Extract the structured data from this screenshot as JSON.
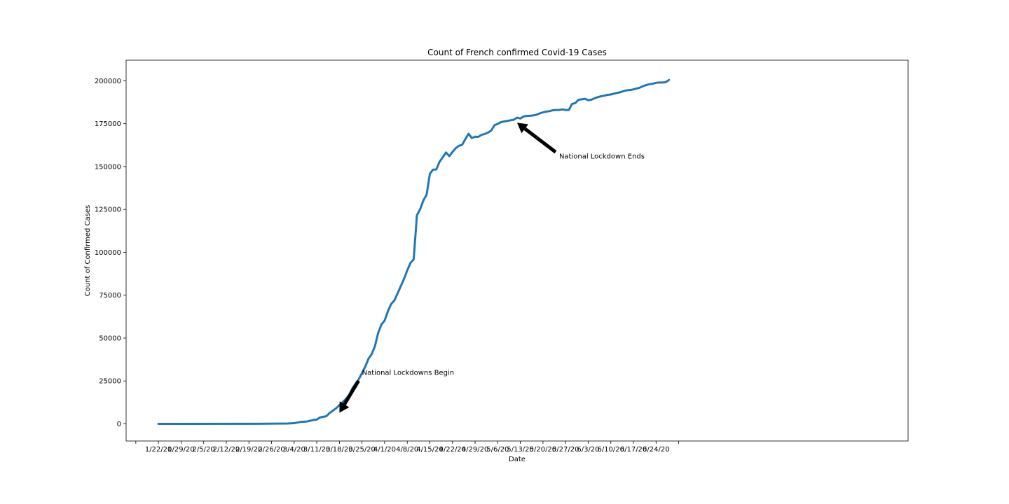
{
  "chart_data": {
    "type": "line",
    "title": "Count of French confirmed Covid-19 Cases",
    "xlabel": "Date",
    "ylabel": "Count of Confirmed Cases",
    "ylim": [
      -10000,
      212000
    ],
    "xlim": [
      -10,
      232
    ],
    "grid": false,
    "legend": "none",
    "colors": {
      "line": "#1f77b4",
      "arrow": "#000000"
    },
    "x_ticks": [
      {
        "day": 0,
        "label": "1/22/20"
      },
      {
        "day": 7,
        "label": "1/29/20"
      },
      {
        "day": 14,
        "label": "2/5/20"
      },
      {
        "day": 21,
        "label": "2/12/20"
      },
      {
        "day": 28,
        "label": "2/19/20"
      },
      {
        "day": 35,
        "label": "2/26/20"
      },
      {
        "day": 42,
        "label": "3/4/20"
      },
      {
        "day": 49,
        "label": "3/11/20"
      },
      {
        "day": 56,
        "label": "3/18/20"
      },
      {
        "day": 63,
        "label": "3/25/20"
      },
      {
        "day": 70,
        "label": "4/1/20"
      },
      {
        "day": 77,
        "label": "4/8/20"
      },
      {
        "day": 84,
        "label": "4/15/20"
      },
      {
        "day": 91,
        "label": "4/22/20"
      },
      {
        "day": 98,
        "label": "4/29/20"
      },
      {
        "day": 105,
        "label": "5/6/20"
      },
      {
        "day": 112,
        "label": "5/13/20"
      },
      {
        "day": 119,
        "label": "5/20/20"
      },
      {
        "day": 126,
        "label": "5/27/20"
      },
      {
        "day": 133,
        "label": "6/3/20"
      },
      {
        "day": 140,
        "label": "6/10/20"
      },
      {
        "day": 147,
        "label": "6/17/20"
      },
      {
        "day": 154,
        "label": "6/24/20"
      }
    ],
    "y_ticks": [
      0,
      25000,
      50000,
      75000,
      100000,
      125000,
      150000,
      175000,
      200000
    ],
    "series": [
      {
        "x": [
          0,
          30,
          40,
          42,
          44,
          46,
          48,
          49,
          50,
          52,
          53,
          54,
          55,
          56,
          57,
          58,
          59,
          60,
          61,
          62,
          63,
          64,
          65,
          66,
          67,
          68,
          69,
          70,
          71,
          72,
          73,
          74,
          75,
          76,
          77,
          78,
          79,
          80,
          81,
          82,
          83,
          84,
          85,
          86,
          87,
          88,
          89,
          90,
          91,
          92,
          93,
          94,
          95,
          96,
          97,
          98,
          99,
          100,
          101,
          102,
          103,
          104,
          105,
          106,
          107,
          108,
          109,
          110,
          111,
          112,
          113,
          114,
          115,
          116,
          117,
          118,
          119,
          120,
          121,
          122,
          123,
          124,
          125,
          126,
          127,
          128,
          129,
          130,
          131,
          132,
          133,
          134,
          135,
          136,
          137,
          138,
          139,
          140,
          141,
          142,
          143,
          144,
          145,
          146,
          147,
          148,
          149,
          150,
          151,
          152,
          153,
          154,
          155,
          156,
          157,
          158
        ],
        "y": [
          0,
          50,
          200,
          400,
          1100,
          1400,
          2300,
          2500,
          3700,
          4500,
          6400,
          7700,
          9100,
          10900,
          12600,
          14500,
          16700,
          20600,
          23300,
          26000,
          29600,
          33400,
          38000,
          40700,
          45300,
          53000,
          57900,
          60200,
          65500,
          69800,
          71900,
          76000,
          80300,
          84500,
          89400,
          93800,
          95900,
          121600,
          125200,
          130300,
          133700,
          145800,
          148200,
          148300,
          152800,
          155400,
          158200,
          156100,
          158500,
          160700,
          162100,
          162700,
          166100,
          169100,
          166600,
          167400,
          167300,
          168500,
          169000,
          169800,
          171000,
          174100,
          174900,
          175900,
          176300,
          176600,
          177000,
          177300,
          178500,
          178000,
          179200,
          179500,
          179600,
          179800,
          180200,
          181000,
          181600,
          182000,
          182300,
          182800,
          183000,
          183000,
          183300,
          183000,
          183000,
          186500,
          187000,
          188900,
          189200,
          189500,
          188700,
          189000,
          189800,
          190500,
          191000,
          191300,
          191800,
          192000,
          192500,
          193000,
          193400,
          194000,
          194500,
          194600,
          195000,
          195500,
          196000,
          196900,
          197600,
          198000,
          198300,
          198800,
          199000,
          199000,
          199200,
          200500
        ]
      }
    ],
    "annotations": [
      {
        "text": "National Lockdowns Begin",
        "text_at": [
          63,
          30000
        ],
        "point_to": [
          56,
          6500
        ]
      },
      {
        "text": "National Lockdown Ends",
        "text_at": [
          124,
          156000
        ],
        "point_to": [
          111,
          175500
        ]
      }
    ]
  }
}
